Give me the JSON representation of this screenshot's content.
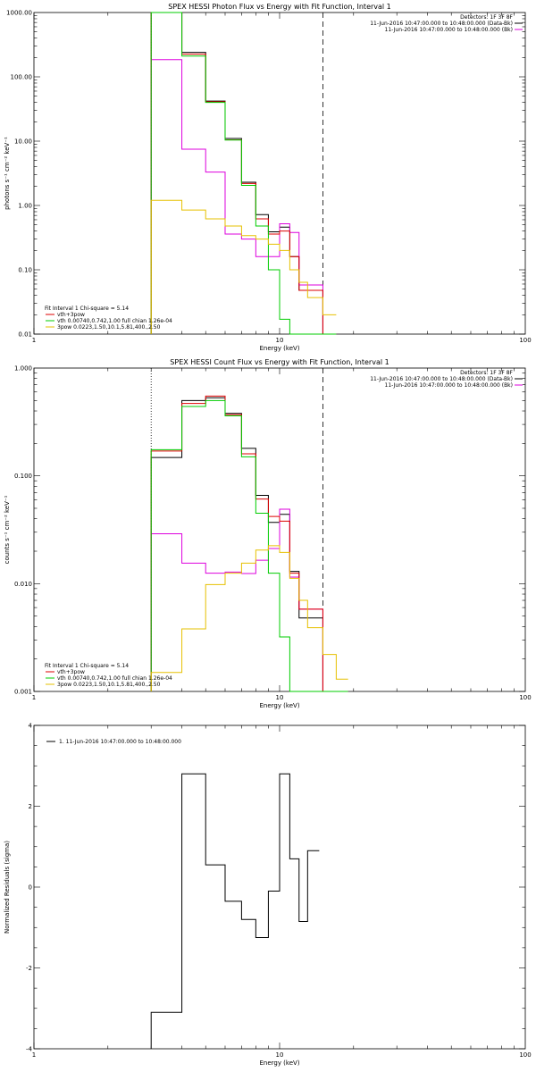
{
  "chart_data": [
    {
      "type": "line",
      "title": "SPEX HESSI Photon Flux vs Energy with Fit Function, Interval 1",
      "xlabel": "Energy (keV)",
      "ylabel": "photons s⁻¹ cm⁻² keV⁻¹",
      "xscale": "log",
      "yscale": "log",
      "xlim": [
        1,
        100
      ],
      "ylim": [
        0.01,
        1000
      ],
      "x_ticks": [
        "1",
        "10",
        "100"
      ],
      "y_ticks": [
        "1000.00",
        "100.00",
        "10.00",
        "1.00",
        "0.10",
        "0.01"
      ],
      "grid": false,
      "legend_top": [
        "Detectors: 1F 3F 8F",
        "11-Jun-2016 10:47:00.000 to 10:48:00.000 (Data-Bk)",
        "11-Jun-2016 10:47:00.000 to 10:48:00.000 (Bk)"
      ],
      "legend_bottom": [
        "Fit Interval 1   Chi-square = 5.14",
        "vth+3pow",
        "vth 0.00740,0.742,1.00  full chian 1.26e-04",
        "3pow 0.0223,1.50,10.1,5.81,400.,2.50"
      ],
      "vlines": [
        {
          "x": 3.0,
          "style": "dotted"
        },
        {
          "x": 15.0,
          "style": "dashed"
        }
      ],
      "edges": [
        3.0,
        4.0,
        5.0,
        6.0,
        7.0,
        8.0,
        9.0,
        10.0,
        11.0,
        12.0,
        13.0,
        15.0,
        17.0
      ],
      "series": [
        {
          "name": "Data-Bk",
          "color": "#000000",
          "values": [
            1000,
            240,
            42,
            11,
            2.3,
            0.72,
            0.39,
            0.46,
            0.16,
            0.048,
            0.048,
            0.01
          ]
        },
        {
          "name": "Bk",
          "color": "#dd00dd",
          "values": [
            185,
            7.5,
            3.3,
            0.36,
            0.3,
            0.16,
            0.16,
            0.52,
            0.38,
            0.058,
            0.058,
            0.01
          ]
        },
        {
          "name": "vth+3pow",
          "color": "#dd0000",
          "values": [
            1000,
            225,
            41,
            10.5,
            2.2,
            0.62,
            0.36,
            0.4,
            0.16,
            0.048,
            0.048,
            0.01
          ]
        },
        {
          "name": "vth",
          "color": "#00cc00",
          "values": [
            1000,
            210,
            40,
            10.4,
            2.05,
            0.48,
            0.1,
            0.017,
            0.01,
            0.01,
            0.01,
            0.01
          ]
        },
        {
          "name": "3pow",
          "color": "#e6c000",
          "values": [
            1.2,
            0.85,
            0.62,
            0.48,
            0.34,
            0.3,
            0.25,
            0.2,
            0.1,
            0.064,
            0.037,
            0.02
          ]
        }
      ]
    },
    {
      "type": "line",
      "title": "SPEX HESSI Count Flux vs Energy with Fit Function, Interval 1",
      "xlabel": "Energy (keV)",
      "ylabel": "counts s⁻¹ cm⁻² keV⁻¹",
      "xscale": "log",
      "yscale": "log",
      "xlim": [
        1,
        100
      ],
      "ylim": [
        0.001,
        1.0
      ],
      "x_ticks": [
        "1",
        "10",
        "100"
      ],
      "y_ticks": [
        "1.000",
        "0.100",
        "0.010",
        "0.001"
      ],
      "grid": false,
      "legend_top": [
        "Detectors: 1F 3F 8F",
        "11-Jun-2016 10:47:00.000 to 10:48:00.000 (Data-Bk)",
        "11-Jun-2016 10:47:00.000 to 10:48:00.000 (Bk)"
      ],
      "legend_bottom": [
        "Fit Interval 1   Chi-square = 5.14",
        "vth+3pow",
        "vth 0.00740,0.742,1.00  full chian 1.26e-04",
        "3pow 0.0223,1.50,10.1,5.81,400.,2.50"
      ],
      "vlines": [
        {
          "x": 3.0,
          "style": "dotted"
        },
        {
          "x": 15.0,
          "style": "dashed"
        }
      ],
      "edges": [
        3.0,
        4.0,
        5.0,
        6.0,
        7.0,
        8.0,
        9.0,
        10.0,
        11.0,
        12.0,
        13.0,
        15.0,
        17.0,
        19.0
      ],
      "series": [
        {
          "name": "Data-Bk",
          "color": "#000000",
          "values": [
            0.148,
            0.5,
            0.53,
            0.38,
            0.18,
            0.066,
            0.037,
            0.044,
            0.013,
            0.0048,
            0.0048,
            0.001,
            0.001
          ]
        },
        {
          "name": "Bk",
          "color": "#dd00dd",
          "values": [
            0.029,
            0.0155,
            0.0125,
            0.0128,
            0.0124,
            0.0165,
            0.0212,
            0.049,
            0.0115,
            0.0058,
            0.0058,
            0.001,
            0.001
          ]
        },
        {
          "name": "vth+3pow",
          "color": "#dd0000",
          "values": [
            0.17,
            0.47,
            0.55,
            0.37,
            0.16,
            0.061,
            0.042,
            0.038,
            0.0125,
            0.0058,
            0.0058,
            0.001,
            0.001
          ]
        },
        {
          "name": "vth",
          "color": "#00cc00",
          "values": [
            0.175,
            0.44,
            0.5,
            0.36,
            0.15,
            0.045,
            0.0125,
            0.0032,
            0.001,
            0.001,
            0.001,
            0.001,
            0.001
          ]
        },
        {
          "name": "3pow",
          "color": "#e6c000",
          "values": [
            0.0015,
            0.0038,
            0.0098,
            0.0125,
            0.0155,
            0.0205,
            0.0225,
            0.0195,
            0.0112,
            0.007,
            0.0039,
            0.0022,
            0.0013
          ]
        }
      ]
    },
    {
      "type": "line",
      "title": "",
      "xlabel": "Energy (keV)",
      "ylabel": "Normalized Residuals (sigma)",
      "xscale": "log",
      "yscale": "linear",
      "xlim": [
        1,
        100
      ],
      "ylim": [
        -4,
        4
      ],
      "x_ticks": [
        "1",
        "10",
        "100"
      ],
      "y_ticks": [
        "4",
        "2",
        "0",
        "-2",
        "-4"
      ],
      "grid": false,
      "legend_top": [
        "1. 11-Jun-2016 10:47:00.000 to 10:48:00.000"
      ],
      "edges": [
        3.0,
        4.0,
        5.0,
        6.0,
        7.0,
        8.0,
        9.0,
        10.0,
        11.0,
        12.0,
        13.0,
        14.5
      ],
      "series": [
        {
          "name": "1. 11-Jun-2016 10:47:00.000 to 10:48:00.000",
          "color": "#000000",
          "values": [
            -3.1,
            2.8,
            0.55,
            -0.35,
            -0.8,
            -1.25,
            -0.1,
            2.8,
            0.7,
            -0.85,
            0.9
          ]
        }
      ]
    }
  ]
}
